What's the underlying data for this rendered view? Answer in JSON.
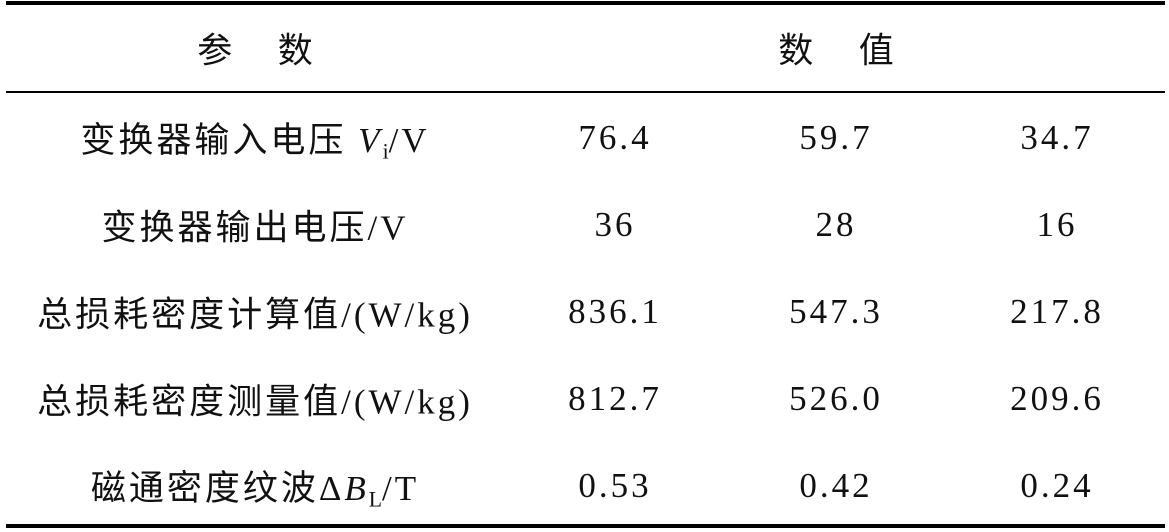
{
  "table": {
    "header": [
      "参数",
      "数值"
    ],
    "rows": [
      {
        "label": [
          "变换器输入电压 ",
          "V",
          "i",
          "/V"
        ],
        "values": [
          "76.4",
          "59.7",
          "34.7"
        ]
      },
      {
        "label": [
          "变换器输出电压/V"
        ],
        "values": [
          "36",
          "28",
          "16"
        ]
      },
      {
        "label": [
          "总损耗密度计算值/(W/kg)"
        ],
        "values": [
          "836.1",
          "547.3",
          "217.8"
        ]
      },
      {
        "label": [
          "总损耗密度测量值/(W/kg)"
        ],
        "values": [
          "812.7",
          "526.0",
          "209.6"
        ]
      },
      {
        "label": [
          "磁通密度纹波Δ",
          "B",
          "L",
          "/T"
        ],
        "values": [
          "0.53",
          "0.42",
          "0.24"
        ]
      }
    ]
  }
}
